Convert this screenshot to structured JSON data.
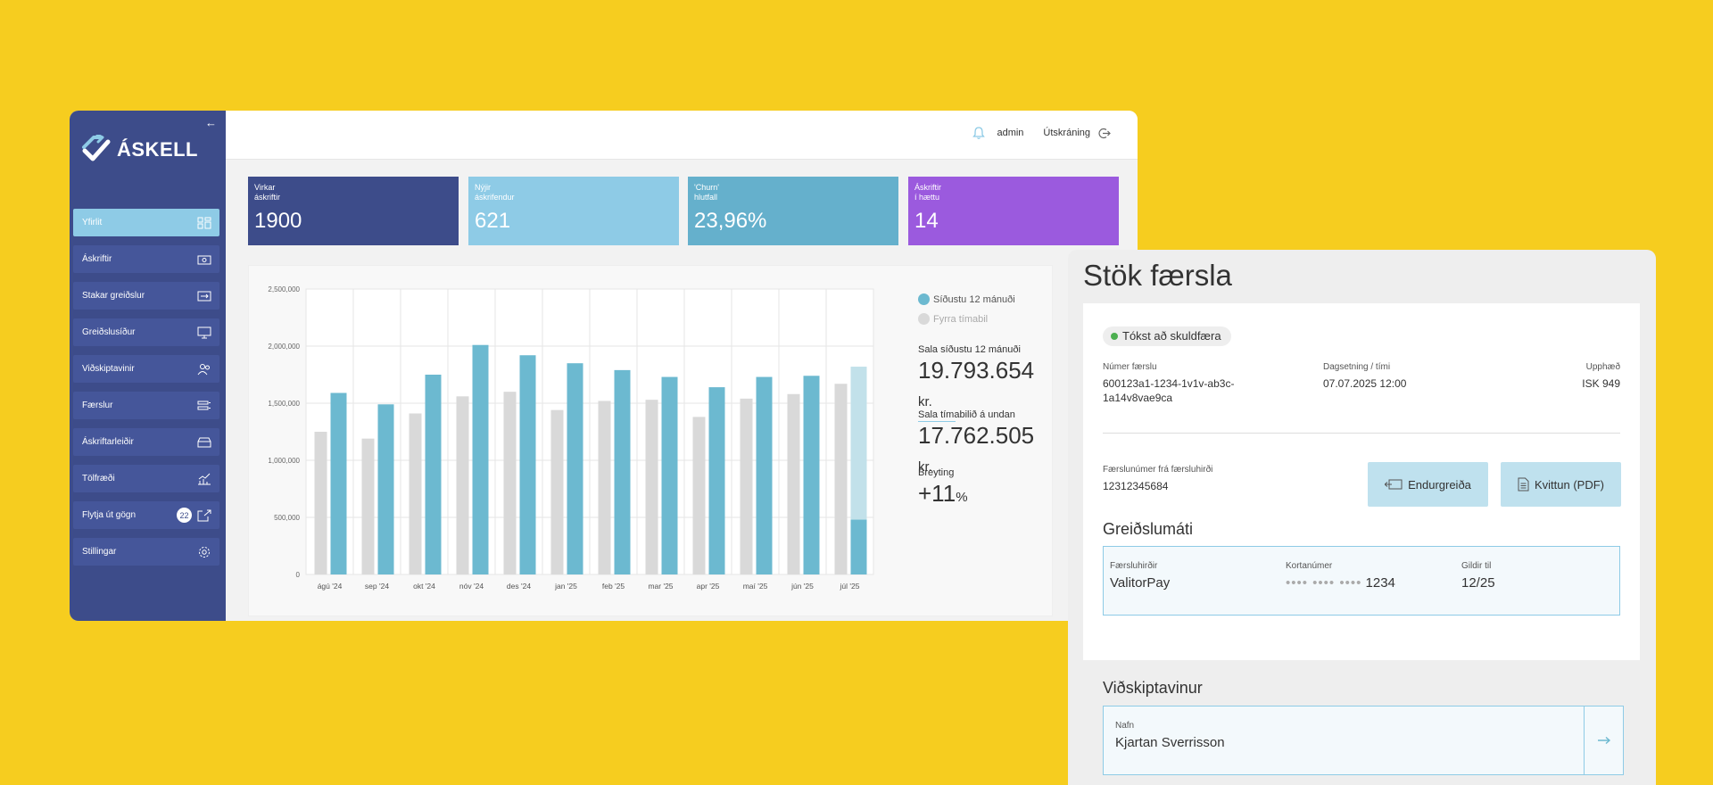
{
  "brand": {
    "name": "ÁSKELL"
  },
  "colors": {
    "background": "#f6cd1f",
    "sidebar": "#3d4c8a",
    "accent": "#8ecbe6",
    "current_series": "#6cb9d0",
    "previous_series": "#d9d9d9",
    "kpi_subscriptions": "#3d4c8a",
    "kpi_new": "#8ecbe6",
    "kpi_churn": "#65b0cc",
    "kpi_risk": "#9b5ade",
    "success": "#4caf50"
  },
  "sidebar": {
    "items": [
      {
        "label": "Yfirlit",
        "icon": "grid-icon",
        "active": true
      },
      {
        "label": "Áskriftir",
        "icon": "money-icon"
      },
      {
        "label": "Stakar greiðslur",
        "icon": "card-transfer-icon"
      },
      {
        "label": "Greiðslusíður",
        "icon": "monitor-icon"
      },
      {
        "label": "Viðskiptavinir",
        "icon": "users-icon"
      },
      {
        "label": "Færslur",
        "icon": "transactions-icon"
      },
      {
        "label": "Áskriftarleiðir",
        "icon": "tray-icon"
      },
      {
        "label": "Tölfræði",
        "icon": "chart-icon"
      },
      {
        "label": "Flytja út gögn",
        "icon": "export-icon",
        "badge": "22"
      },
      {
        "label": "Stillingar",
        "icon": "gear-icon"
      }
    ]
  },
  "header": {
    "user": "admin",
    "logout": "Útskráning"
  },
  "kpis": [
    {
      "label": "Virkar\náskriftir",
      "value": "1900"
    },
    {
      "label": "Nýjir\náskrifendur",
      "value": "621"
    },
    {
      "label": "'Churn'\nhlutfall",
      "value": "23,96%"
    },
    {
      "label": "Áskriftir\ní hættu",
      "value": "14"
    }
  ],
  "chart_data": {
    "type": "bar",
    "categories": [
      "ágú '24",
      "sep '24",
      "okt '24",
      "nóv '24",
      "des '24",
      "jan '25",
      "feb '25",
      "mar '25",
      "apr '25",
      "maí '25",
      "jún '25",
      "júl '25"
    ],
    "series": [
      {
        "name": "Fyrra tímabil",
        "values": [
          1250000,
          1190000,
          1410000,
          1560000,
          1600000,
          1440000,
          1520000,
          1530000,
          1380000,
          1540000,
          1580000,
          1670000
        ]
      },
      {
        "name": "Síðustu 12 mánuði",
        "values": [
          1590000,
          1490000,
          1750000,
          2010000,
          1920000,
          1850000,
          1790000,
          1730000,
          1640000,
          1730000,
          1740000,
          480000
        ]
      }
    ],
    "projected": {
      "category": "júl '25",
      "value": 1820000
    },
    "ylim": [
      0,
      2500000
    ],
    "yticks": [
      "0",
      "500,000",
      "1,000,000",
      "1,500,000",
      "2,000,000",
      "2,500,000"
    ],
    "grid": true,
    "legend": "right"
  },
  "stats": {
    "last12_label": "Sala síðustu 12 mánuði",
    "last12_value": "19.793.654",
    "prev_label": "Sala tímabilið á undan",
    "prev_value": "17.762.505",
    "currency": "kr.",
    "change_label": "Breyting",
    "change_value": "+11",
    "change_unit": "%"
  },
  "transaction": {
    "title": "Stök færsla",
    "status": "Tókst að skuldfæra",
    "number_label": "Númer færslu",
    "number_value": "600123a1-1234-1v1v-ab3c-1a14v8vae9ca",
    "date_label": "Dagsetning / tími",
    "date_value": "07.07.2025 12:00",
    "amount_label": "Upphæð",
    "amount_value": "ISK 949",
    "processor_ref_label": "Færslunúmer frá færsluhirði",
    "processor_ref_value": "12312345684",
    "refund_label": "Endurgreiða",
    "receipt_label": "Kvittun (PDF)",
    "payment_method_title": "Greiðslumáti",
    "processor_label": "Færsluhirðir",
    "processor_value": "ValitorPay",
    "card_label": "Kortanúmer",
    "card_mask": "•••• •••• ••••",
    "card_last4": "1234",
    "valid_label": "Gildir til",
    "valid_value": "12/25",
    "customer_title": "Viðskiptavinur",
    "name_label": "Nafn",
    "name_value": "Kjartan Sverrisson"
  }
}
